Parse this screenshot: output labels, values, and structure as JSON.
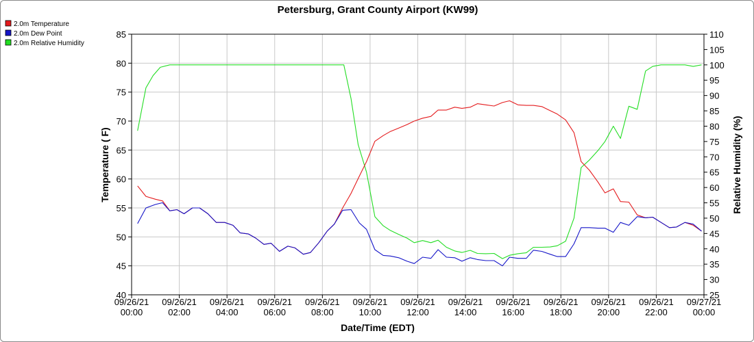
{
  "chart_data": {
    "type": "line",
    "title": "Petersburg, Grant County Airport (KW99)",
    "xlabel": "Date/Time (EDT)",
    "ylabel": "Temperature ( F)",
    "y2label": "Relative Humidity (%)",
    "xlim_hours": [
      0,
      24
    ],
    "ylim": [
      40,
      85
    ],
    "y_ticks": [
      40,
      45,
      50,
      55,
      60,
      65,
      70,
      75,
      80,
      85
    ],
    "y2lim": [
      25,
      110
    ],
    "y2_ticks": [
      25,
      30,
      35,
      40,
      45,
      50,
      55,
      60,
      65,
      70,
      75,
      80,
      85,
      90,
      95,
      100,
      105,
      110
    ],
    "x_ticks": [
      {
        "hour": 0,
        "date": "09/26/21",
        "time": "00:00"
      },
      {
        "hour": 2,
        "date": "09/26/21",
        "time": "02:00"
      },
      {
        "hour": 4,
        "date": "09/26/21",
        "time": "04:00"
      },
      {
        "hour": 6,
        "date": "09/26/21",
        "time": "06:00"
      },
      {
        "hour": 8,
        "date": "09/26/21",
        "time": "08:00"
      },
      {
        "hour": 10,
        "date": "09/26/21",
        "time": "10:00"
      },
      {
        "hour": 12,
        "date": "09/26/21",
        "time": "12:00"
      },
      {
        "hour": 14,
        "date": "09/26/21",
        "time": "14:00"
      },
      {
        "hour": 16,
        "date": "09/26/21",
        "time": "16:00"
      },
      {
        "hour": 18,
        "date": "09/26/21",
        "time": "18:00"
      },
      {
        "hour": 20,
        "date": "09/26/21",
        "time": "20:00"
      },
      {
        "hour": 22,
        "date": "09/26/21",
        "time": "22:00"
      },
      {
        "hour": 24,
        "date": "09/27/21",
        "time": "00:00"
      }
    ],
    "grid": true,
    "legend_position": "top-left",
    "series": [
      {
        "name": "2.0m Temperature",
        "color": "#e41a1c",
        "axis": "left",
        "points": [
          [
            0.25,
            58.8
          ],
          [
            0.6,
            57.0
          ],
          [
            1.0,
            56.5
          ],
          [
            1.3,
            56.2
          ],
          [
            1.6,
            54.5
          ],
          [
            1.9,
            54.7
          ],
          [
            2.2,
            54.0
          ],
          [
            2.55,
            55.0
          ],
          [
            2.85,
            55.0
          ],
          [
            3.2,
            54.0
          ],
          [
            3.55,
            52.5
          ],
          [
            3.9,
            52.5
          ],
          [
            4.25,
            52.0
          ],
          [
            4.55,
            50.7
          ],
          [
            4.9,
            50.5
          ],
          [
            5.2,
            49.8
          ],
          [
            5.55,
            48.7
          ],
          [
            5.85,
            48.9
          ],
          [
            6.2,
            47.5
          ],
          [
            6.55,
            48.4
          ],
          [
            6.85,
            48.1
          ],
          [
            7.2,
            47.0
          ],
          [
            7.5,
            47.3
          ],
          [
            7.85,
            49.0
          ],
          [
            8.2,
            51.0
          ],
          [
            8.5,
            52.2
          ],
          [
            8.85,
            55.0
          ],
          [
            9.2,
            57.5
          ],
          [
            9.55,
            60.5
          ],
          [
            9.85,
            63.0
          ],
          [
            10.2,
            66.5
          ],
          [
            10.55,
            67.5
          ],
          [
            10.85,
            68.2
          ],
          [
            11.2,
            68.8
          ],
          [
            11.55,
            69.4
          ],
          [
            11.85,
            70.0
          ],
          [
            12.2,
            70.5
          ],
          [
            12.55,
            70.8
          ],
          [
            12.85,
            71.9
          ],
          [
            13.2,
            71.9
          ],
          [
            13.55,
            72.4
          ],
          [
            13.85,
            72.2
          ],
          [
            14.2,
            72.4
          ],
          [
            14.5,
            73.0
          ],
          [
            14.85,
            72.8
          ],
          [
            15.2,
            72.6
          ],
          [
            15.55,
            73.2
          ],
          [
            15.85,
            73.5
          ],
          [
            16.2,
            72.8
          ],
          [
            16.55,
            72.7
          ],
          [
            16.85,
            72.7
          ],
          [
            17.2,
            72.5
          ],
          [
            17.55,
            71.8
          ],
          [
            17.85,
            71.2
          ],
          [
            18.2,
            70.2
          ],
          [
            18.55,
            68.0
          ],
          [
            18.85,
            63.0
          ],
          [
            19.2,
            61.5
          ],
          [
            19.55,
            59.5
          ],
          [
            19.85,
            57.6
          ],
          [
            20.2,
            58.3
          ],
          [
            20.5,
            56.1
          ],
          [
            20.85,
            56.0
          ],
          [
            21.2,
            53.8
          ],
          [
            21.55,
            53.3
          ],
          [
            21.85,
            53.4
          ],
          [
            22.2,
            52.5
          ],
          [
            22.55,
            51.6
          ],
          [
            22.85,
            51.7
          ],
          [
            23.2,
            52.5
          ],
          [
            23.55,
            52.0
          ],
          [
            23.9,
            51.0
          ]
        ]
      },
      {
        "name": "2.0m Dew Point",
        "color": "#1414c8",
        "axis": "left",
        "points": [
          [
            0.25,
            52.3
          ],
          [
            0.6,
            55.0
          ],
          [
            1.0,
            55.6
          ],
          [
            1.3,
            55.9
          ],
          [
            1.6,
            54.5
          ],
          [
            1.9,
            54.7
          ],
          [
            2.2,
            54.0
          ],
          [
            2.55,
            55.0
          ],
          [
            2.85,
            55.0
          ],
          [
            3.2,
            54.0
          ],
          [
            3.55,
            52.5
          ],
          [
            3.9,
            52.5
          ],
          [
            4.25,
            52.0
          ],
          [
            4.55,
            50.7
          ],
          [
            4.9,
            50.5
          ],
          [
            5.2,
            49.8
          ],
          [
            5.55,
            48.7
          ],
          [
            5.85,
            48.9
          ],
          [
            6.2,
            47.5
          ],
          [
            6.55,
            48.4
          ],
          [
            6.85,
            48.1
          ],
          [
            7.2,
            47.0
          ],
          [
            7.5,
            47.3
          ],
          [
            7.85,
            49.0
          ],
          [
            8.2,
            51.0
          ],
          [
            8.5,
            52.2
          ],
          [
            8.85,
            54.6
          ],
          [
            9.2,
            54.7
          ],
          [
            9.55,
            52.4
          ],
          [
            9.85,
            51.3
          ],
          [
            10.2,
            47.8
          ],
          [
            10.55,
            46.8
          ],
          [
            10.85,
            46.7
          ],
          [
            11.2,
            46.4
          ],
          [
            11.55,
            45.8
          ],
          [
            11.85,
            45.4
          ],
          [
            12.2,
            46.5
          ],
          [
            12.55,
            46.3
          ],
          [
            12.85,
            47.8
          ],
          [
            13.2,
            46.5
          ],
          [
            13.55,
            46.4
          ],
          [
            13.85,
            45.8
          ],
          [
            14.2,
            46.4
          ],
          [
            14.5,
            46.1
          ],
          [
            14.85,
            45.9
          ],
          [
            15.2,
            45.9
          ],
          [
            15.55,
            45.0
          ],
          [
            15.85,
            46.5
          ],
          [
            16.2,
            46.3
          ],
          [
            16.55,
            46.3
          ],
          [
            16.85,
            47.7
          ],
          [
            17.2,
            47.5
          ],
          [
            17.55,
            47.0
          ],
          [
            17.85,
            46.6
          ],
          [
            18.2,
            46.6
          ],
          [
            18.55,
            48.8
          ],
          [
            18.85,
            51.6
          ],
          [
            19.2,
            51.6
          ],
          [
            19.55,
            51.5
          ],
          [
            19.85,
            51.5
          ],
          [
            20.2,
            50.8
          ],
          [
            20.5,
            52.5
          ],
          [
            20.85,
            52.0
          ],
          [
            21.2,
            53.5
          ],
          [
            21.55,
            53.3
          ],
          [
            21.85,
            53.4
          ],
          [
            22.2,
            52.5
          ],
          [
            22.55,
            51.6
          ],
          [
            22.85,
            51.7
          ],
          [
            23.2,
            52.5
          ],
          [
            23.55,
            52.2
          ],
          [
            23.9,
            51.0
          ]
        ]
      },
      {
        "name": "2.0m Relative Humidity",
        "color": "#22dd22",
        "axis": "right",
        "points": [
          [
            0.25,
            78.5
          ],
          [
            0.6,
            92.5
          ],
          [
            0.9,
            96.5
          ],
          [
            1.2,
            99.2
          ],
          [
            1.6,
            100
          ],
          [
            2.0,
            100
          ],
          [
            3.0,
            100
          ],
          [
            4.0,
            100
          ],
          [
            5.0,
            100
          ],
          [
            6.0,
            100
          ],
          [
            7.0,
            100
          ],
          [
            8.0,
            100
          ],
          [
            8.9,
            100
          ],
          [
            9.2,
            89.0
          ],
          [
            9.5,
            74.0
          ],
          [
            9.85,
            65.0
          ],
          [
            10.2,
            50.5
          ],
          [
            10.55,
            47.5
          ],
          [
            10.85,
            46.0
          ],
          [
            11.2,
            44.7
          ],
          [
            11.55,
            43.5
          ],
          [
            11.85,
            42.0
          ],
          [
            12.2,
            42.7
          ],
          [
            12.55,
            42.0
          ],
          [
            12.85,
            42.8
          ],
          [
            13.2,
            40.5
          ],
          [
            13.55,
            39.3
          ],
          [
            13.85,
            38.8
          ],
          [
            14.2,
            39.5
          ],
          [
            14.5,
            38.5
          ],
          [
            14.85,
            38.4
          ],
          [
            15.2,
            38.5
          ],
          [
            15.55,
            36.8
          ],
          [
            15.85,
            37.9
          ],
          [
            16.2,
            38.4
          ],
          [
            16.55,
            38.7
          ],
          [
            16.85,
            40.5
          ],
          [
            17.2,
            40.5
          ],
          [
            17.55,
            40.6
          ],
          [
            17.85,
            41.0
          ],
          [
            18.2,
            42.5
          ],
          [
            18.55,
            50.0
          ],
          [
            18.85,
            66.5
          ],
          [
            19.2,
            69.0
          ],
          [
            19.55,
            72.0
          ],
          [
            19.85,
            75.0
          ],
          [
            20.2,
            80.0
          ],
          [
            20.5,
            76.0
          ],
          [
            20.85,
            86.5
          ],
          [
            21.2,
            85.5
          ],
          [
            21.55,
            98.0
          ],
          [
            21.85,
            99.5
          ],
          [
            22.2,
            100
          ],
          [
            22.55,
            100
          ],
          [
            22.85,
            100
          ],
          [
            23.2,
            100
          ],
          [
            23.55,
            99.5
          ],
          [
            23.9,
            100
          ]
        ]
      }
    ]
  }
}
